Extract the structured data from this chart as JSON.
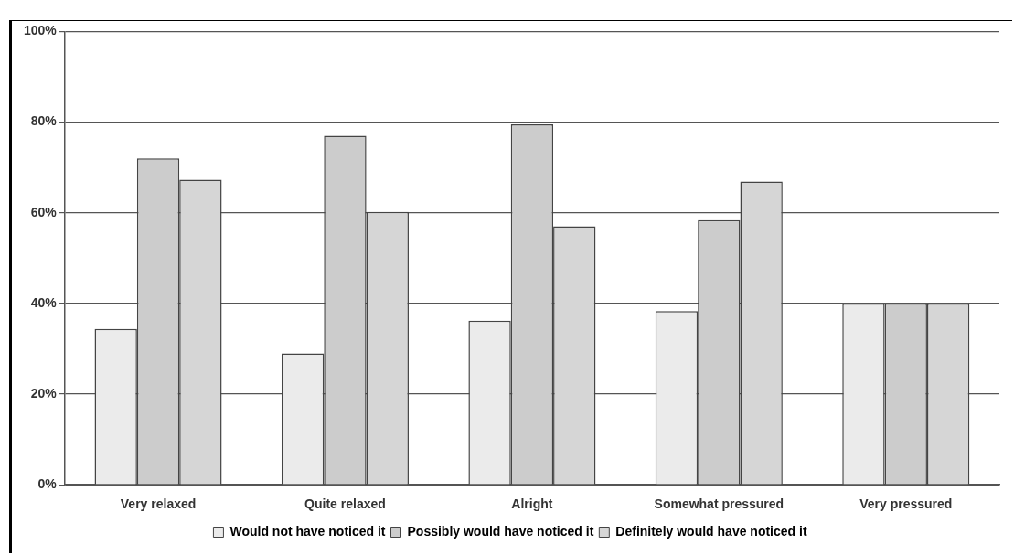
{
  "chart_data": {
    "type": "bar",
    "categories": [
      "Very relaxed",
      "Quite relaxed",
      "Alright",
      "Somewhat pressured",
      "Very pressured"
    ],
    "series": [
      {
        "name": "Would not have noticed it",
        "color": "#ebebeb",
        "values": [
          34.4,
          29.0,
          36.2,
          38.3,
          40
        ]
      },
      {
        "name": "Possibly would have noticed it",
        "color": "#cccccc",
        "values": [
          72.0,
          77.0,
          79.5,
          58.4,
          40
        ]
      },
      {
        "name": "Definitely would have noticed it",
        "color": "#d6d6d6",
        "values": [
          67.3,
          60.2,
          57.0,
          66.9,
          40
        ]
      }
    ],
    "ylim": [
      0,
      100
    ],
    "yticks": [
      {
        "value": 0,
        "label": "0%"
      },
      {
        "value": 20,
        "label": "20%"
      },
      {
        "value": 40,
        "label": "40%"
      },
      {
        "value": 60,
        "label": "60%"
      },
      {
        "value": 80,
        "label": "80%"
      },
      {
        "value": 100,
        "label": "100%"
      }
    ],
    "grid": "y",
    "legend": "bottom"
  }
}
